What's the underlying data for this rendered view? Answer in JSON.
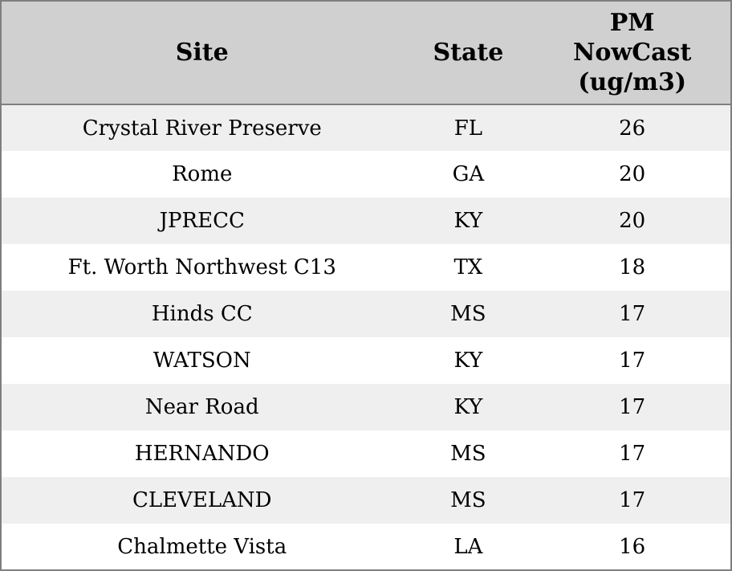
{
  "table": {
    "columns": [
      {
        "key": "site",
        "label": "Site"
      },
      {
        "key": "state",
        "label": "State"
      },
      {
        "key": "pm",
        "label": "PM\nNowCast\n(ug/m3)"
      }
    ],
    "rows": [
      {
        "site": "Crystal River Preserve",
        "state": "FL",
        "pm": "26"
      },
      {
        "site": "Rome",
        "state": "GA",
        "pm": "20"
      },
      {
        "site": "JPRECC",
        "state": "KY",
        "pm": "20"
      },
      {
        "site": "Ft. Worth Northwest C13",
        "state": "TX",
        "pm": "18"
      },
      {
        "site": "Hinds CC",
        "state": "MS",
        "pm": "17"
      },
      {
        "site": "WATSON",
        "state": "KY",
        "pm": "17"
      },
      {
        "site": "Near Road",
        "state": "KY",
        "pm": "17"
      },
      {
        "site": "HERNANDO",
        "state": "MS",
        "pm": "17"
      },
      {
        "site": "CLEVELAND",
        "state": "MS",
        "pm": "17"
      },
      {
        "site": "Chalmette Vista",
        "state": "LA",
        "pm": "16"
      }
    ],
    "colors": {
      "header_bg": "#d0d0d0",
      "row_alt_bg": "#efefef",
      "row_bg": "#ffffff",
      "border": "#7f7f7f",
      "text": "#000000"
    }
  }
}
